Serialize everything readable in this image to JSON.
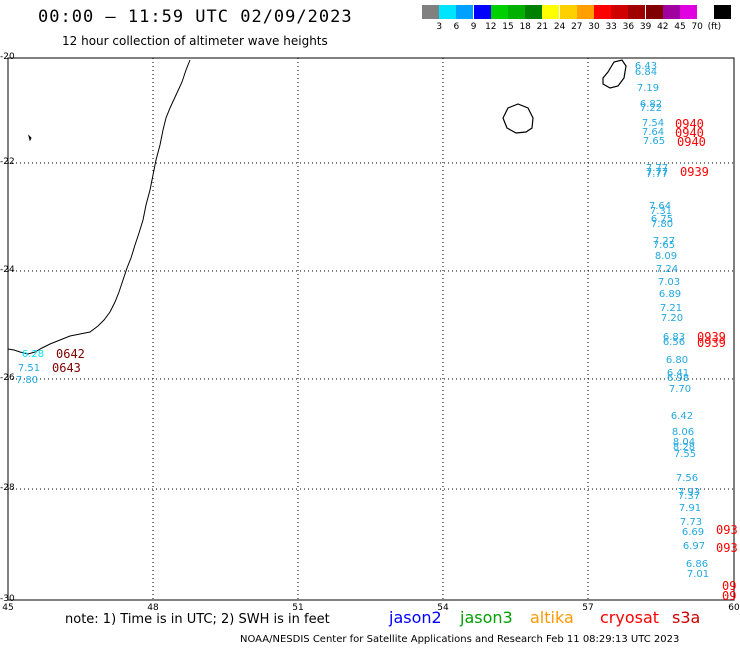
{
  "header": {
    "title": "00:00 – 11:59 UTC 02/09/2023",
    "subtitle": "12 hour collection of altimeter wave heights"
  },
  "legend": {
    "colors": [
      "#808080",
      "#00e5ff",
      "#00a0ff",
      "#0000ff",
      "#00d000",
      "#00b000",
      "#008000",
      "#ffff00",
      "#ffd000",
      "#ffa000",
      "#ff0000",
      "#d00000",
      "#a00000",
      "#800000",
      "#a000a0",
      "#e000e0",
      "#ffffff",
      "#000000"
    ],
    "ticks": [
      "3",
      "6",
      "9",
      "12",
      "15",
      "18",
      "21",
      "24",
      "27",
      "30",
      "33",
      "36",
      "39",
      "42",
      "45",
      "70",
      "(ft)"
    ]
  },
  "axes": {
    "lat_labels": [
      "-20",
      "-22",
      "-24",
      "-26",
      "-28",
      "-30"
    ],
    "lon_labels": [
      "45",
      "48",
      "51",
      "54",
      "57",
      "60"
    ]
  },
  "wave_heights_left": [
    "6.28",
    "7.51",
    "7.80"
  ],
  "times_left": [
    "0642",
    "0643"
  ],
  "wave_heights_right": [
    "6.43",
    "6.84",
    "7.19",
    "6.82",
    "7.22",
    "7.54",
    "7.64",
    "7.65",
    "7.77",
    "7.77",
    "7.77",
    "7.64",
    "7.31",
    "6.75",
    "7.80",
    "7.27",
    "7.65",
    "8.09",
    "7.24",
    "7.03",
    "6.89",
    "7.21",
    "7.20",
    "6.83",
    "6.56",
    "6.80",
    "6.41",
    "6.98",
    "7.70",
    "6.42",
    "8.06",
    "8.04",
    "8.28",
    "7.55",
    "7.56",
    "7.93",
    "7.37",
    "7.91",
    "7.73",
    "6.69",
    "6.97",
    "6.86",
    "7.01"
  ],
  "times_right": [
    "0940",
    "0940",
    "0940",
    "0939",
    "0939",
    "0939",
    "093",
    "093",
    "09",
    "09"
  ],
  "note": "note: 1) Time is in UTC; 2) SWH is in feet",
  "satellites": [
    {
      "name": "jason2",
      "color": "#0000ff"
    },
    {
      "name": "jason3",
      "color": "#00a000"
    },
    {
      "name": "altika",
      "color": "#ff9900"
    },
    {
      "name": "cryosat",
      "color": "#ff0000"
    },
    {
      "name": "s3a",
      "color": "#cc0000"
    }
  ],
  "footer": "NOAA/NESDIS Center for Satellite Applications and Research   Feb 11 08:29:13 UTC 2023"
}
